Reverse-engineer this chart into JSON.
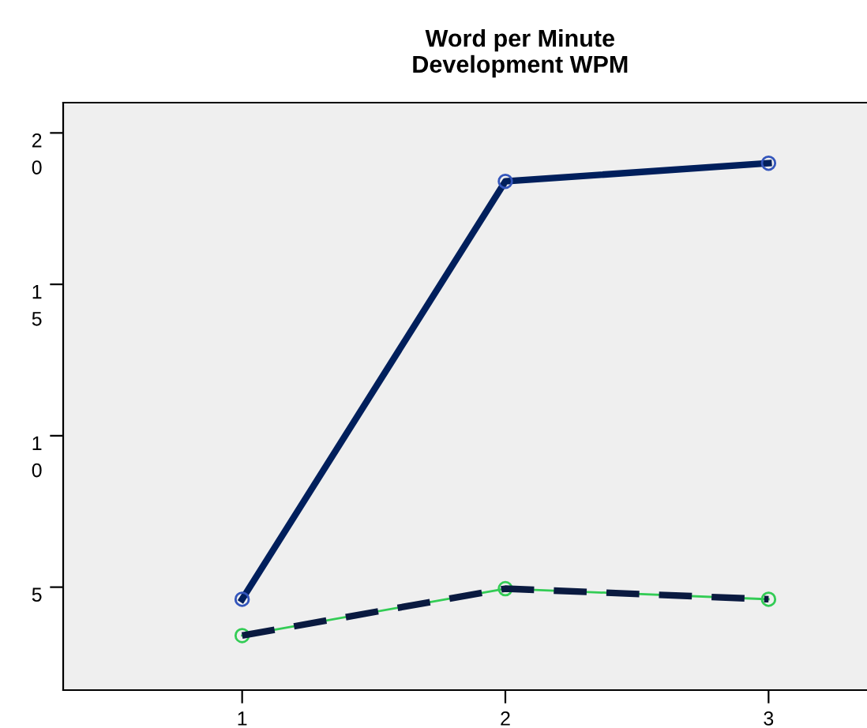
{
  "chart_data": {
    "type": "line",
    "title": "Word per Minute\nDevelopment WPM",
    "x": [
      1,
      2,
      3
    ],
    "series": [
      {
        "color": "#001f5c",
        "values": [
          4.6,
          18.4,
          19.0
        ],
        "marker": "circle",
        "line_style": "solid"
      },
      {
        "color": "#33cc55",
        "values": [
          3.4,
          4.95,
          4.6
        ],
        "marker": "circle",
        "line_style": "solid"
      },
      {
        "color": "#0a1a40",
        "values": [
          3.4,
          4.95,
          4.6
        ],
        "marker": "none",
        "line_style": "dashed"
      }
    ],
    "xlim": [
      0.32,
      3.68
    ],
    "ylim": [
      1.6,
      21.0
    ],
    "xticks": [
      1,
      2,
      3
    ],
    "yticks": [
      5,
      10,
      15,
      20
    ],
    "grid": false
  }
}
